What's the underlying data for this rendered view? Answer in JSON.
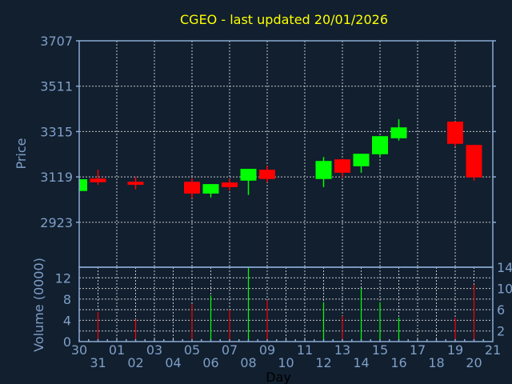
{
  "chart_data": {
    "type": "candlestick",
    "title": "CGEO - last updated 20/01/2026",
    "xlabel": "Day",
    "ylabel": "Price",
    "volume_label": "Volume (0000)",
    "x_ticks": [
      "30",
      "31",
      "01",
      "02",
      "03",
      "04",
      "05",
      "06",
      "07",
      "08",
      "09",
      "10",
      "11",
      "12",
      "13",
      "14",
      "15",
      "16",
      "17",
      "18",
      "19",
      "20",
      "21"
    ],
    "price_ticks": [
      2923,
      3119,
      3315,
      3511,
      3707
    ],
    "price_range": [
      2729,
      3707
    ],
    "volume_ticks": [
      0,
      2,
      4,
      6,
      8,
      10,
      12,
      14
    ],
    "volume_range": [
      0,
      14
    ],
    "colors": {
      "up": "#00ff00",
      "down": "#ff0000",
      "title": "#ffff00",
      "background": "#111f2f"
    },
    "candles": [
      {
        "day": "30",
        "open": 3058,
        "high": 3109,
        "low": 3058,
        "close": 3109,
        "volume": 0
      },
      {
        "day": "31",
        "open": 3112,
        "high": 3150,
        "low": 3085,
        "close": 3096,
        "volume": 5.6
      },
      {
        "day": "02",
        "open": 3098,
        "high": 3119,
        "low": 3065,
        "close": 3085,
        "volume": 4.2
      },
      {
        "day": "05",
        "open": 3098,
        "high": 3113,
        "low": 3027,
        "close": 3047,
        "volume": 7.0
      },
      {
        "day": "06",
        "open": 3047,
        "high": 3088,
        "low": 3030,
        "close": 3088,
        "volume": 8.7
      },
      {
        "day": "07",
        "open": 3095,
        "high": 3111,
        "low": 3061,
        "close": 3075,
        "volume": 6.0
      },
      {
        "day": "08",
        "open": 3103,
        "high": 3154,
        "low": 3041,
        "close": 3154,
        "volume": 14.0
      },
      {
        "day": "09",
        "open": 3150,
        "high": 3166,
        "low": 3096,
        "close": 3110,
        "volume": 7.8
      },
      {
        "day": "12",
        "open": 3110,
        "high": 3205,
        "low": 3075,
        "close": 3188,
        "volume": 7.4
      },
      {
        "day": "13",
        "open": 3195,
        "high": 3197,
        "low": 3117,
        "close": 3137,
        "volume": 4.8
      },
      {
        "day": "14",
        "open": 3165,
        "high": 3219,
        "low": 3137,
        "close": 3219,
        "volume": 10.0
      },
      {
        "day": "15",
        "open": 3217,
        "high": 3295,
        "low": 3207,
        "close": 3295,
        "volume": 7.4
      },
      {
        "day": "16",
        "open": 3286,
        "high": 3368,
        "low": 3276,
        "close": 3333,
        "volume": 4.5
      },
      {
        "day": "19",
        "open": 3358,
        "high": 3358,
        "low": 3252,
        "close": 3262,
        "volume": 4.5
      },
      {
        "day": "20",
        "open": 3257,
        "high": 3257,
        "low": 3103,
        "close": 3117,
        "volume": 10.7
      }
    ]
  }
}
